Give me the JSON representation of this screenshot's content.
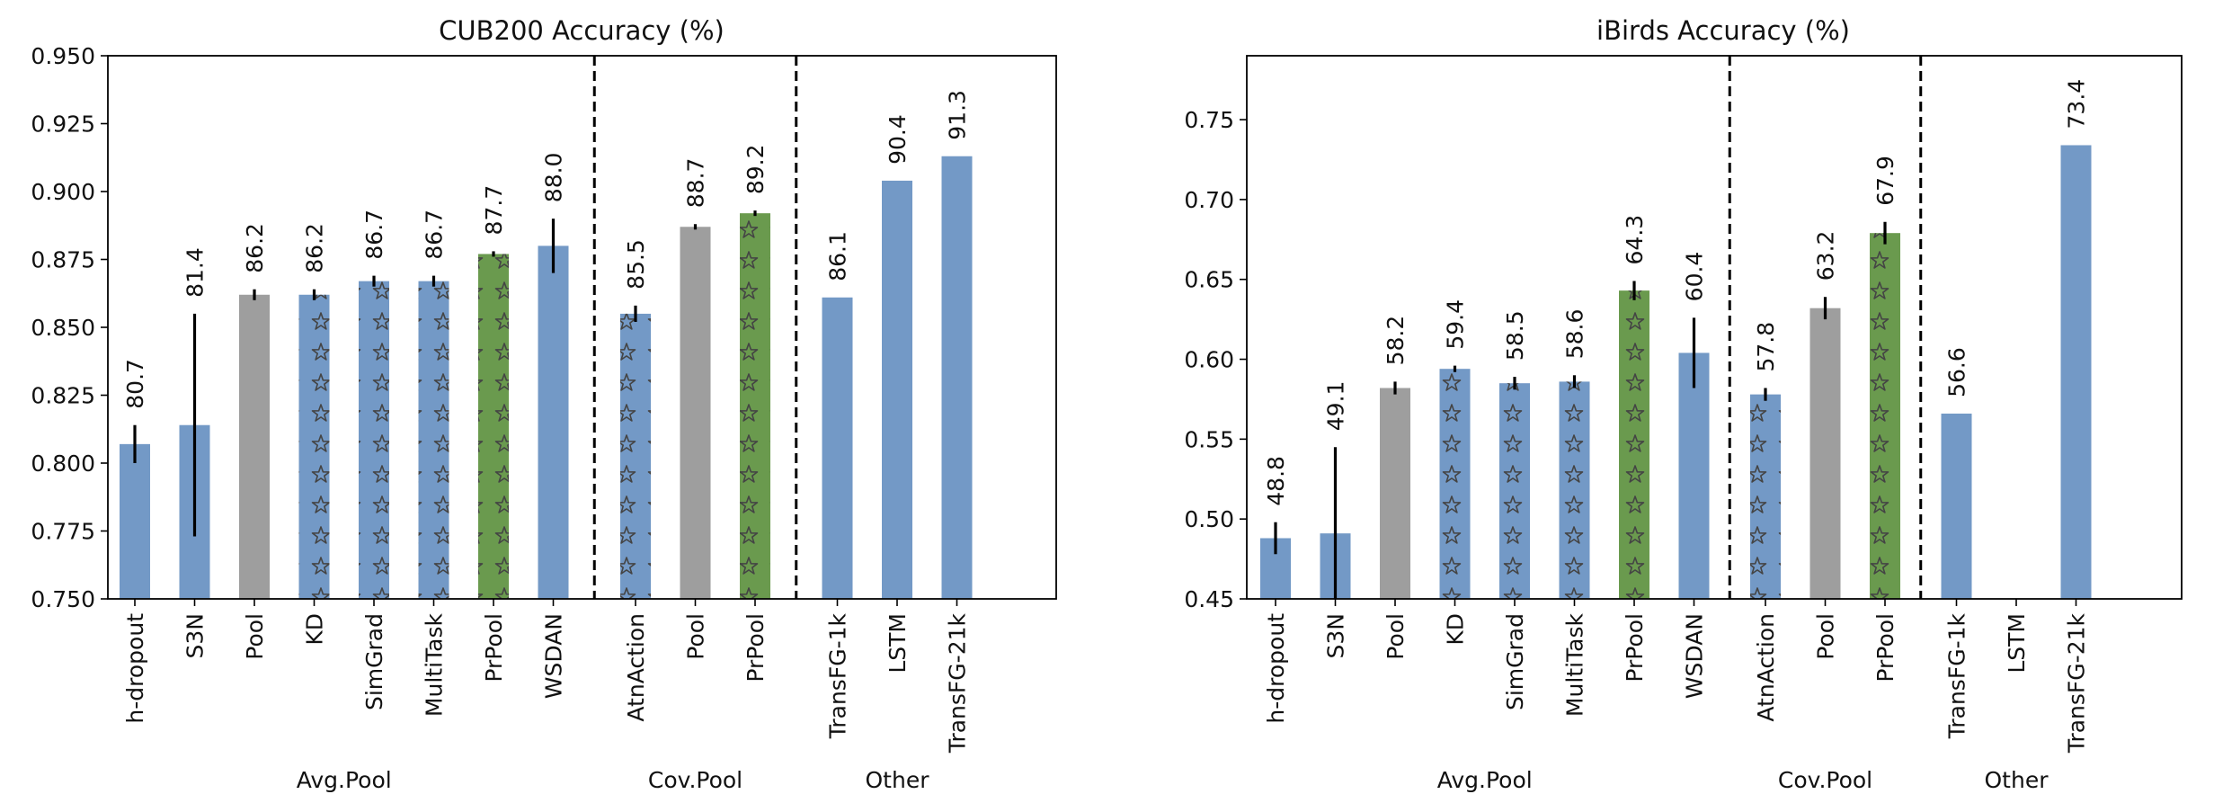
{
  "chart_data": [
    {
      "type": "bar",
      "title": "CUB200 Accuracy (%)",
      "xlabel": "",
      "ylabel": "",
      "ylim": [
        0.75,
        0.95
      ],
      "yticks": [
        0.75,
        0.775,
        0.8,
        0.825,
        0.85,
        0.875,
        0.9,
        0.925,
        0.95
      ],
      "ytick_labels": [
        "0.750",
        "0.775",
        "0.800",
        "0.825",
        "0.850",
        "0.875",
        "0.900",
        "0.925",
        "0.950"
      ],
      "groups": [
        {
          "label": "Avg.Pool",
          "categories": [
            "h-dropout",
            "S3N",
            "Pool",
            "KD",
            "SimGrad",
            "MultiTask",
            "PrPool",
            "WSDAN"
          ]
        },
        {
          "label": "Cov.Pool",
          "categories": [
            "AtnAction",
            "Pool",
            "PrPool"
          ]
        },
        {
          "label": "Other",
          "categories": [
            "TransFG-1k",
            "LSTM",
            "TransFG-21k"
          ]
        }
      ],
      "values": [
        0.807,
        0.814,
        0.862,
        0.862,
        0.867,
        0.867,
        0.877,
        0.88,
        0.855,
        0.887,
        0.892,
        0.861,
        0.904,
        0.913
      ],
      "errors": [
        0.007,
        0.041,
        0.002,
        0.002,
        0.002,
        0.002,
        0.001,
        0.01,
        0.003,
        0.001,
        0.001,
        0,
        0,
        0
      ],
      "labels": [
        "80.7",
        "81.4",
        "86.2",
        "86.2",
        "86.7",
        "86.7",
        "87.7",
        "88.0",
        "85.5",
        "88.7",
        "89.2",
        "86.1",
        "90.4",
        "91.3"
      ],
      "styles": [
        "blue",
        "blue",
        "gray",
        "blue-star",
        "blue-star",
        "blue-star",
        "green-star",
        "blue",
        "blue-star",
        "gray",
        "green-star",
        "blue",
        "blue",
        "blue"
      ],
      "grid": false,
      "legend": "none"
    },
    {
      "type": "bar",
      "title": "iBirds Accuracy (%)",
      "xlabel": "",
      "ylabel": "",
      "ylim": [
        0.45,
        0.79
      ],
      "yticks": [
        0.45,
        0.5,
        0.55,
        0.6,
        0.65,
        0.7,
        0.75
      ],
      "ytick_labels": [
        "0.45",
        "0.50",
        "0.55",
        "0.60",
        "0.65",
        "0.70",
        "0.75"
      ],
      "groups": [
        {
          "label": "Avg.Pool",
          "categories": [
            "h-dropout",
            "S3N",
            "Pool",
            "KD",
            "SimGrad",
            "MultiTask",
            "PrPool",
            "WSDAN"
          ]
        },
        {
          "label": "Cov.Pool",
          "categories": [
            "AtnAction",
            "Pool",
            "PrPool"
          ]
        },
        {
          "label": "Other",
          "categories": [
            "TransFG-1k",
            "LSTM",
            "TransFG-21k"
          ]
        }
      ],
      "values": [
        0.488,
        0.491,
        0.582,
        0.594,
        0.585,
        0.586,
        0.643,
        0.604,
        0.578,
        0.632,
        0.679,
        0.566,
        null,
        0.734
      ],
      "errors": [
        0.01,
        0.054,
        0.004,
        0.002,
        0.004,
        0.004,
        0.006,
        0.022,
        0.004,
        0.007,
        0.007,
        0,
        0,
        0
      ],
      "labels": [
        "48.8",
        "49.1",
        "58.2",
        "59.4",
        "58.5",
        "58.6",
        "64.3",
        "60.4",
        "57.8",
        "63.2",
        "67.9",
        "56.6",
        "",
        "73.4"
      ],
      "styles": [
        "blue",
        "blue",
        "gray",
        "blue-star",
        "blue-star",
        "blue-star",
        "green-star",
        "blue",
        "blue-star",
        "gray",
        "green-star",
        "blue",
        "blue",
        "blue"
      ],
      "grid": false,
      "legend": "none"
    }
  ],
  "colors": {
    "blue": "#7399c6",
    "gray": "#9e9e9e",
    "green": "#6a9a4e",
    "star_outline": "#444444",
    "separator": "#000000"
  }
}
